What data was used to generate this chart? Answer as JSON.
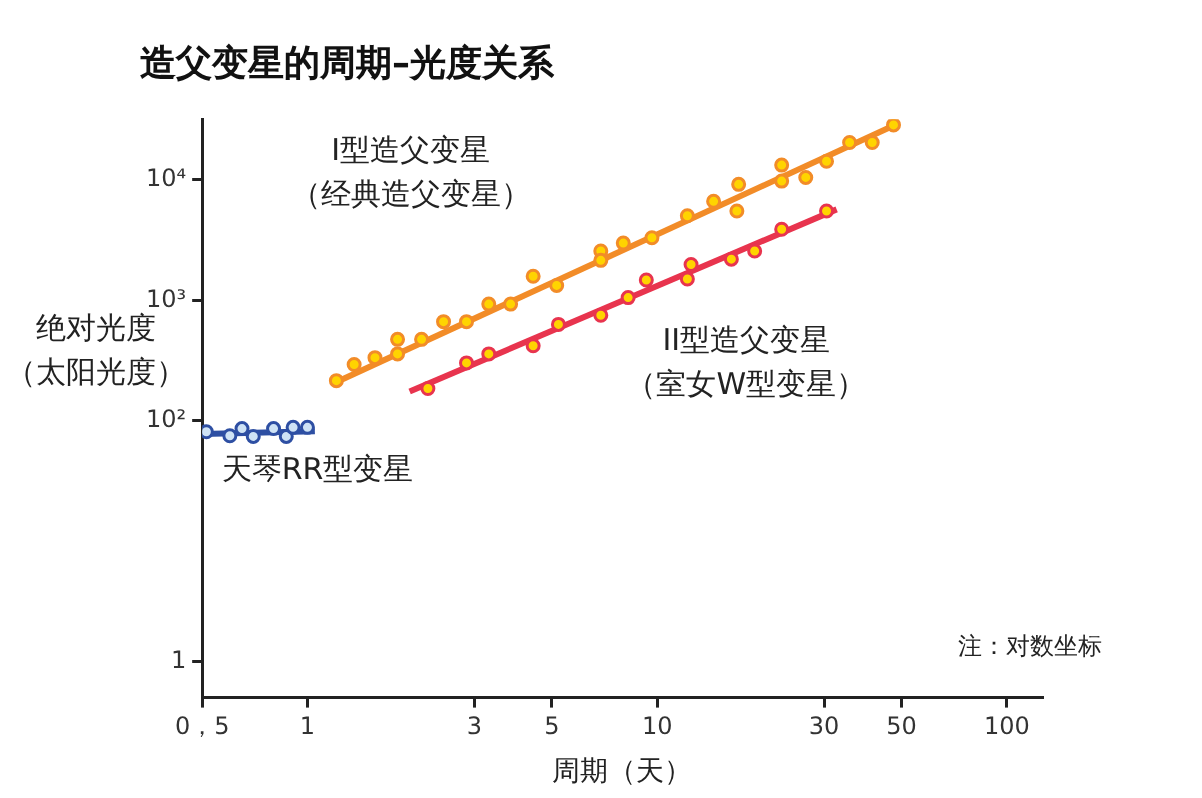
{
  "chart_data": {
    "type": "scatter",
    "title": "造父变星的周期–光度关系",
    "xlabel": "周期（天）",
    "ylabel": "绝对光度（太阳光度）",
    "log": "xy",
    "grid": false,
    "legend": false,
    "marker": "circle",
    "xlim": [
      0.5,
      126
    ],
    "xticks": [
      {
        "value": 0.5,
        "label": "0，5"
      },
      1,
      3,
      5,
      10,
      30,
      50,
      100
    ],
    "ylim": [
      0.5,
      32000
    ],
    "yticks": [
      1,
      {
        "value": 100,
        "label": "10²"
      },
      {
        "value": 1000,
        "label": "10³"
      },
      {
        "value": 10000,
        "label": "10⁴"
      }
    ],
    "series": [
      {
        "name": "I型造父变星（经典造父变星）",
        "color": "#f28c28",
        "x": [
          1.21,
          1.36,
          1.56,
          1.81,
          1.81,
          2.12,
          2.45,
          2.85,
          3.3,
          3.81,
          4.42,
          5.16,
          6.9,
          6.9,
          8.0,
          9.66,
          12.2,
          14.5,
          16.9,
          17.1,
          22.7,
          22.7,
          26.6,
          30.5,
          35.5,
          41.2,
          47.4
        ],
        "values": [
          215,
          293,
          334,
          474,
          359,
          474,
          665,
          665,
          931,
          931,
          1585,
          1330,
          2570,
          2150,
          2990,
          3310,
          5040,
          6650,
          5530,
          9200,
          13300,
          9790,
          10500,
          14300,
          20500,
          20500,
          28700
        ]
      },
      {
        "type": "line",
        "color": "#f28c28",
        "marker": "none",
        "x": [
          1.19,
          48.7
        ],
        "values": [
          205,
          29300
        ]
      },
      {
        "name": "II型造父变星（室女W型变星）",
        "color": "#e8344e",
        "x": [
          2.21,
          2.85,
          3.3,
          4.42,
          5.22,
          6.9,
          8.26,
          9.31,
          12.2,
          12.5,
          16.3,
          19.0,
          22.7,
          30.5
        ],
        "values": [
          185,
          302,
          359,
          419,
          631,
          751,
          1054,
          1477,
          1503,
          1983,
          2200,
          2570,
          3900,
          5530
        ]
      },
      {
        "type": "line",
        "color": "#e8344e",
        "marker": "none",
        "x": [
          1.96,
          32.6
        ],
        "values": [
          175,
          5700
        ]
      },
      {
        "name": "天琴RR型变星",
        "color": "#2e4fa3",
        "x": [
          0.514,
          0.6,
          0.65,
          0.7,
          0.8,
          0.87,
          0.91,
          1.0
        ],
        "values": [
          81,
          75,
          86,
          74,
          86,
          74,
          88,
          88
        ]
      },
      {
        "type": "line",
        "color": "#2e4fa3",
        "marker": "none",
        "x": [
          0.5,
          1.05
        ],
        "values": [
          77.5,
          81.5
        ]
      }
    ],
    "annotations": [
      "注：对数坐标"
    ]
  }
}
